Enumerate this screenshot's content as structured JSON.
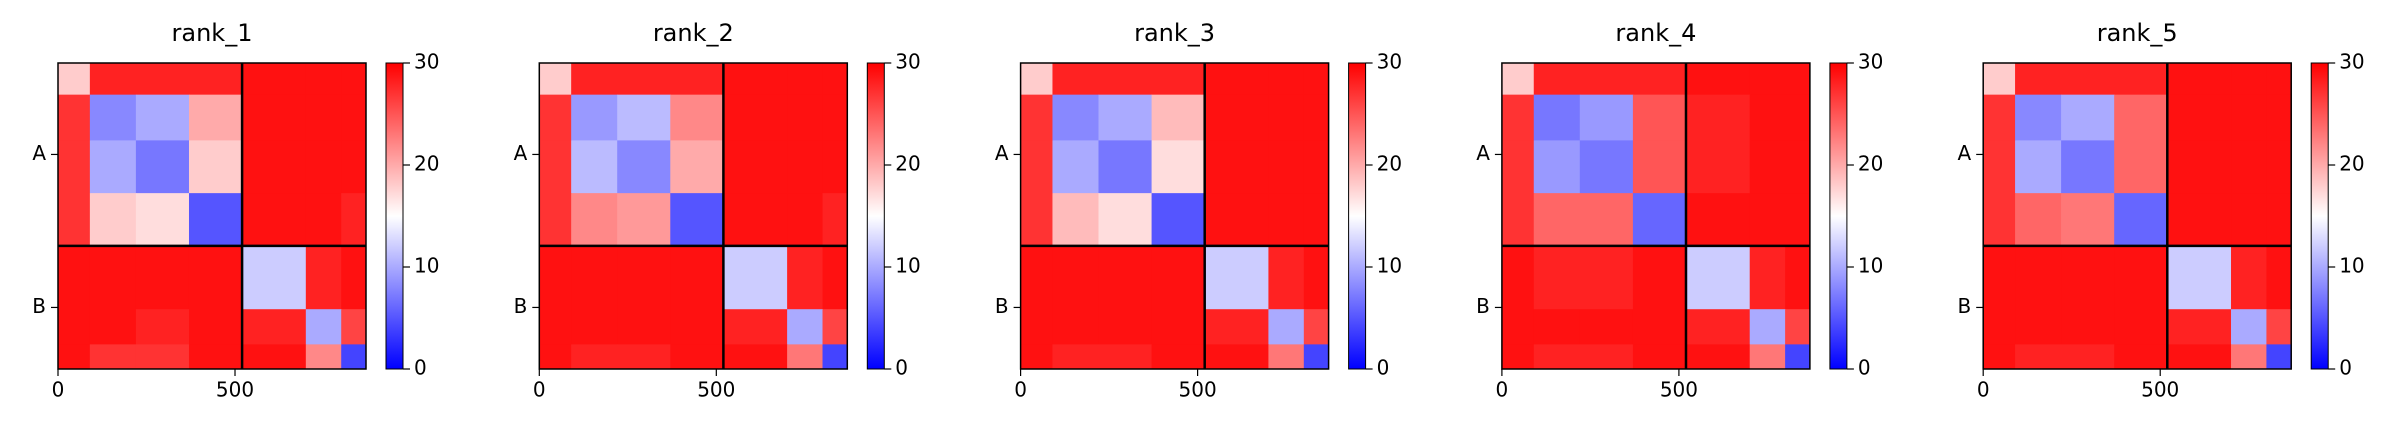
{
  "chart_data": [
    {
      "type": "heatmap",
      "title": "rank_1",
      "bins": [
        0,
        90,
        220,
        370,
        520,
        700,
        800,
        870
      ],
      "xlim": [
        0,
        870
      ],
      "xticks": [
        0,
        500
      ],
      "ylim": [
        0,
        870
      ],
      "y_inverted": true,
      "yticks": [
        {
          "value": 260,
          "label": "A"
        },
        {
          "value": 695,
          "label": "B"
        }
      ],
      "chain_breaks": [
        520
      ],
      "clim": [
        0,
        30
      ],
      "cticks": [
        0,
        10,
        20,
        30
      ],
      "colors": [
        "#0000ff",
        "#ffffff",
        "#ff0000"
      ],
      "values": [
        [
          18,
          28,
          28,
          28,
          29,
          29,
          29
        ],
        [
          27,
          8,
          10,
          20,
          29,
          29,
          29
        ],
        [
          27,
          10,
          7,
          18,
          29,
          29,
          29
        ],
        [
          27,
          18,
          17,
          5,
          29,
          29,
          28
        ],
        [
          29,
          29,
          29,
          29,
          12,
          28,
          29
        ],
        [
          29,
          29,
          28,
          29,
          28,
          10,
          26
        ],
        [
          29,
          27,
          27,
          29,
          29,
          22,
          4
        ]
      ]
    },
    {
      "type": "heatmap",
      "title": "rank_2",
      "bins": [
        0,
        90,
        220,
        370,
        520,
        700,
        800,
        870
      ],
      "xlim": [
        0,
        870
      ],
      "xticks": [
        0,
        500
      ],
      "ylim": [
        0,
        870
      ],
      "y_inverted": true,
      "yticks": [
        {
          "value": 260,
          "label": "A"
        },
        {
          "value": 695,
          "label": "B"
        }
      ],
      "chain_breaks": [
        520
      ],
      "clim": [
        0,
        30
      ],
      "cticks": [
        0,
        10,
        20,
        30
      ],
      "colors": [
        "#0000ff",
        "#ffffff",
        "#ff0000"
      ],
      "values": [
        [
          18,
          28,
          28,
          28,
          29,
          29,
          29
        ],
        [
          27,
          9,
          11,
          22,
          29,
          29,
          29
        ],
        [
          27,
          11,
          8,
          20,
          29,
          29,
          29
        ],
        [
          27,
          22,
          21,
          5,
          29,
          29,
          28
        ],
        [
          29,
          29,
          29,
          29,
          12,
          28,
          29
        ],
        [
          29,
          29,
          29,
          29,
          28,
          10,
          26
        ],
        [
          29,
          28,
          28,
          29,
          29,
          23,
          4
        ]
      ]
    },
    {
      "type": "heatmap",
      "title": "rank_3",
      "bins": [
        0,
        90,
        220,
        370,
        520,
        700,
        800,
        870
      ],
      "xlim": [
        0,
        870
      ],
      "xticks": [
        0,
        500
      ],
      "ylim": [
        0,
        870
      ],
      "y_inverted": true,
      "yticks": [
        {
          "value": 260,
          "label": "A"
        },
        {
          "value": 695,
          "label": "B"
        }
      ],
      "chain_breaks": [
        520
      ],
      "clim": [
        0,
        30
      ],
      "cticks": [
        0,
        10,
        20,
        30
      ],
      "colors": [
        "#0000ff",
        "#ffffff",
        "#ff0000"
      ],
      "values": [
        [
          18,
          28,
          28,
          28,
          29,
          29,
          29
        ],
        [
          27,
          8,
          10,
          19,
          29,
          29,
          29
        ],
        [
          27,
          10,
          7,
          17,
          29,
          29,
          29
        ],
        [
          27,
          19,
          17,
          5,
          29,
          29,
          29
        ],
        [
          29,
          29,
          29,
          29,
          12,
          28,
          29
        ],
        [
          29,
          29,
          29,
          29,
          28,
          10,
          26
        ],
        [
          29,
          28,
          28,
          29,
          29,
          23,
          4
        ]
      ]
    },
    {
      "type": "heatmap",
      "title": "rank_4",
      "bins": [
        0,
        90,
        220,
        370,
        520,
        700,
        800,
        870
      ],
      "xlim": [
        0,
        870
      ],
      "xticks": [
        0,
        500
      ],
      "ylim": [
        0,
        870
      ],
      "y_inverted": true,
      "yticks": [
        {
          "value": 260,
          "label": "A"
        },
        {
          "value": 695,
          "label": "B"
        }
      ],
      "chain_breaks": [
        520
      ],
      "clim": [
        0,
        30
      ],
      "cticks": [
        0,
        10,
        20,
        30
      ],
      "colors": [
        "#0000ff",
        "#ffffff",
        "#ff0000"
      ],
      "values": [
        [
          18,
          28,
          28,
          28,
          29,
          29,
          29
        ],
        [
          27,
          7,
          9,
          25,
          28,
          29,
          29
        ],
        [
          27,
          9,
          7,
          25,
          28,
          29,
          29
        ],
        [
          27,
          24,
          24,
          6,
          29,
          29,
          29
        ],
        [
          29,
          28,
          28,
          29,
          12,
          28,
          29
        ],
        [
          29,
          29,
          29,
          29,
          28,
          10,
          26
        ],
        [
          29,
          28,
          28,
          29,
          29,
          23,
          4
        ]
      ]
    },
    {
      "type": "heatmap",
      "title": "rank_5",
      "bins": [
        0,
        90,
        220,
        370,
        520,
        700,
        800,
        870
      ],
      "xlim": [
        0,
        870
      ],
      "xticks": [
        0,
        500
      ],
      "ylim": [
        0,
        870
      ],
      "y_inverted": true,
      "yticks": [
        {
          "value": 260,
          "label": "A"
        },
        {
          "value": 695,
          "label": "B"
        }
      ],
      "chain_breaks": [
        520
      ],
      "clim": [
        0,
        30
      ],
      "cticks": [
        0,
        10,
        20,
        30
      ],
      "colors": [
        "#0000ff",
        "#ffffff",
        "#ff0000"
      ],
      "values": [
        [
          18,
          28,
          28,
          28,
          29,
          29,
          29
        ],
        [
          27,
          8,
          10,
          24,
          29,
          29,
          29
        ],
        [
          27,
          10,
          7,
          24,
          29,
          29,
          29
        ],
        [
          27,
          24,
          23,
          6,
          29,
          29,
          29
        ],
        [
          29,
          29,
          29,
          29,
          12,
          28,
          29
        ],
        [
          29,
          29,
          29,
          29,
          28,
          10,
          26
        ],
        [
          29,
          28,
          28,
          29,
          29,
          23,
          4
        ]
      ]
    }
  ]
}
